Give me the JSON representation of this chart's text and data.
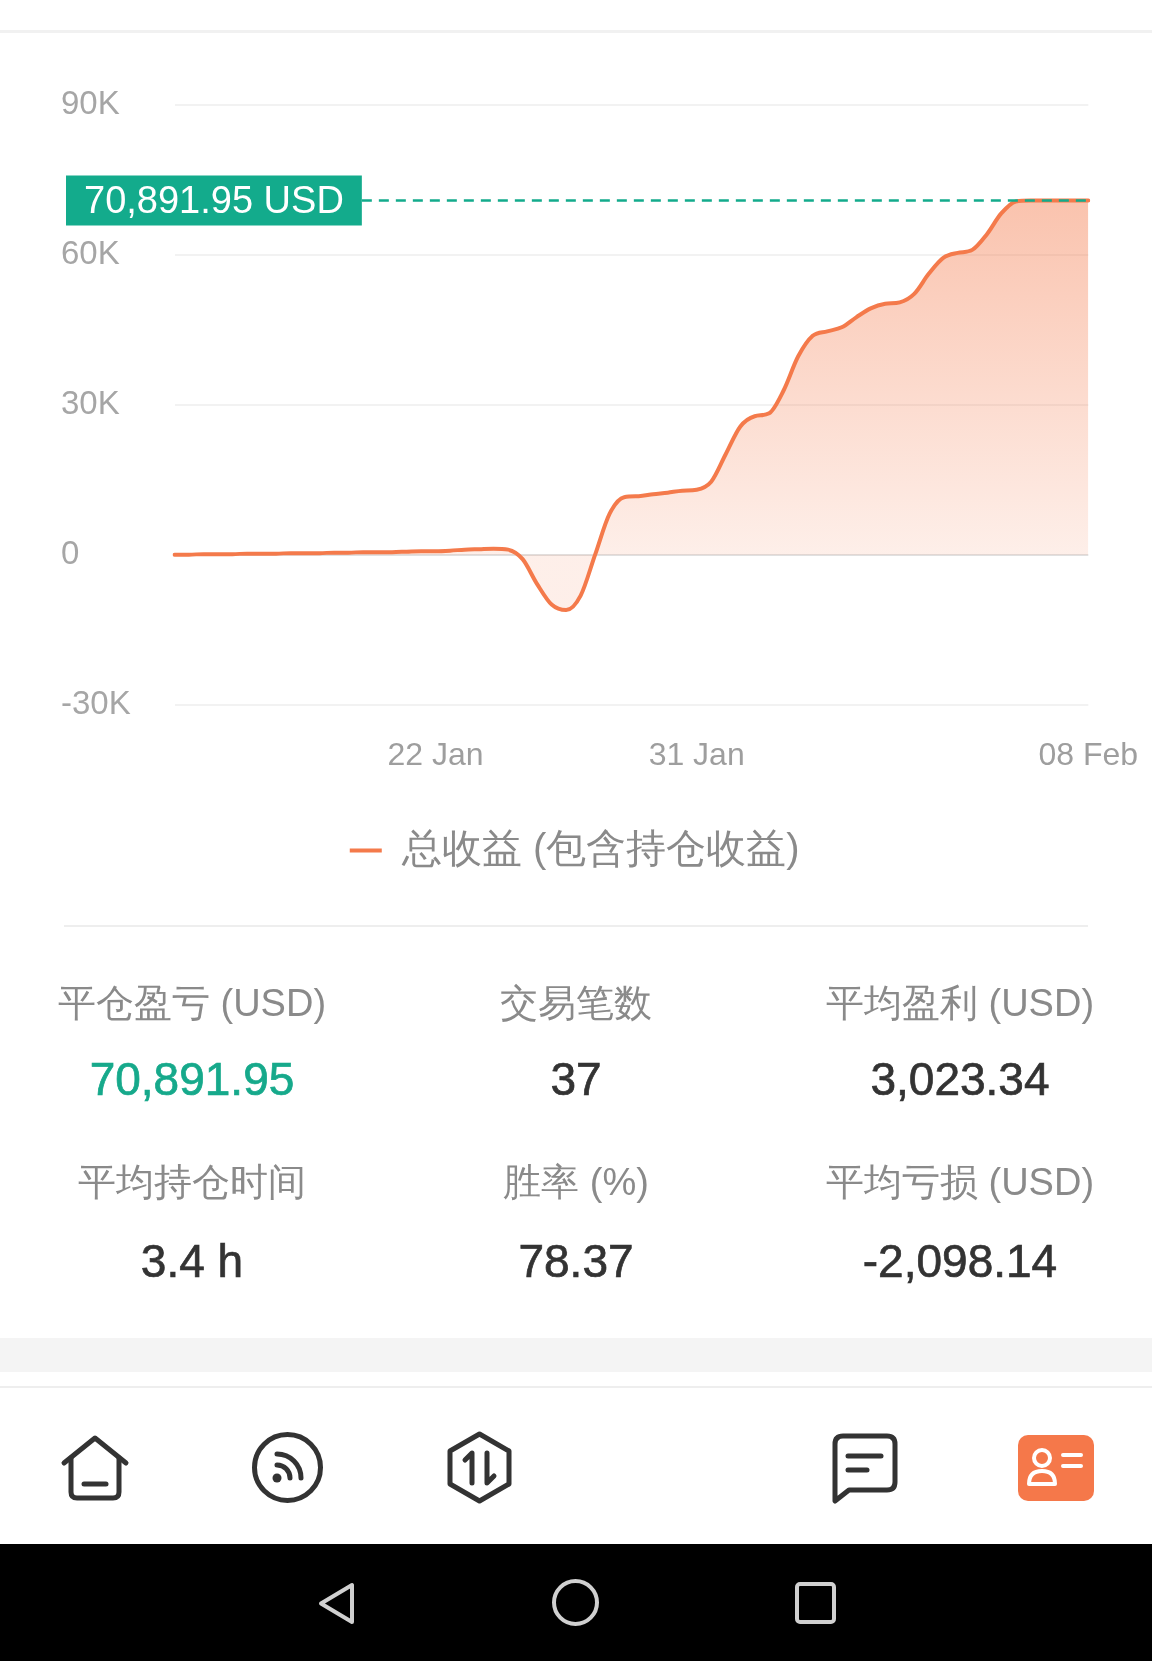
{
  "chart_data": [
    {
      "type": "area",
      "categories": [
        null,
        null,
        null,
        null,
        null,
        null,
        null,
        null,
        null,
        null,
        null,
        null,
        null,
        null,
        null,
        null,
        null,
        null,
        "22 Jan",
        null,
        null,
        null,
        null,
        null,
        null,
        null,
        null,
        null,
        null,
        null,
        null,
        null,
        null,
        null,
        null,
        null,
        "31 Jan",
        null,
        null,
        null,
        null,
        null,
        null,
        null,
        null,
        null,
        null,
        null,
        null,
        null,
        null,
        null,
        null,
        null,
        null,
        null,
        null,
        null,
        null,
        null,
        null,
        null,
        null,
        "08 Feb"
      ],
      "series": [
        {
          "name": "总收益 (包含持仓收益)",
          "color": "#f47a4b",
          "values": [
            0,
            0,
            100,
            100,
            100,
            200,
            200,
            200,
            300,
            300,
            300,
            400,
            400,
            500,
            500,
            500,
            600,
            700,
            700,
            800,
            1000,
            1100,
            1200,
            1000,
            -900,
            -5900,
            -10000,
            -11100,
            -8200,
            0,
            8200,
            11500,
            11700,
            12100,
            12400,
            12800,
            13000,
            14600,
            20100,
            25600,
            27700,
            28300,
            32900,
            39700,
            43800,
            44700,
            45500,
            47500,
            49300,
            50200,
            50500,
            52200,
            56200,
            59400,
            60400,
            61000,
            64100,
            68300,
            70700,
            70900,
            70900,
            70900,
            70900,
            70900
          ]
        }
      ],
      "ylim": [
        -30000,
        90000
      ],
      "yticks": [
        {
          "value": -30000,
          "label": "-30K"
        },
        0,
        {
          "value": 30000,
          "label": "30K"
        },
        {
          "value": 60000,
          "label": "60K"
        },
        {
          "value": 90000,
          "label": "90K"
        }
      ],
      "ref_lines": [
        {
          "axis": "y",
          "value": 70891.95,
          "label": "70,891.95 USD",
          "color": "#13ab8c",
          "line_style": "dashed"
        }
      ],
      "grid": "y",
      "legend": "bottom",
      "marker": "none"
    },
    {
      "type": "other",
      "categories": [
        "平仓盈亏 (USD)",
        "交易笔数",
        "平均盈利 (USD)",
        "平均持仓时间",
        "胜率 (%)",
        "平均亏损 (USD)"
      ],
      "value_labels": [
        "70,891.95",
        "37",
        "3,023.34",
        "3.4 h",
        "78.37",
        "-2,098.14"
      ],
      "colors": [
        "#16a98b",
        "#333333",
        "#333333",
        "#333333",
        "#333333",
        "#333333"
      ]
    }
  ]
}
